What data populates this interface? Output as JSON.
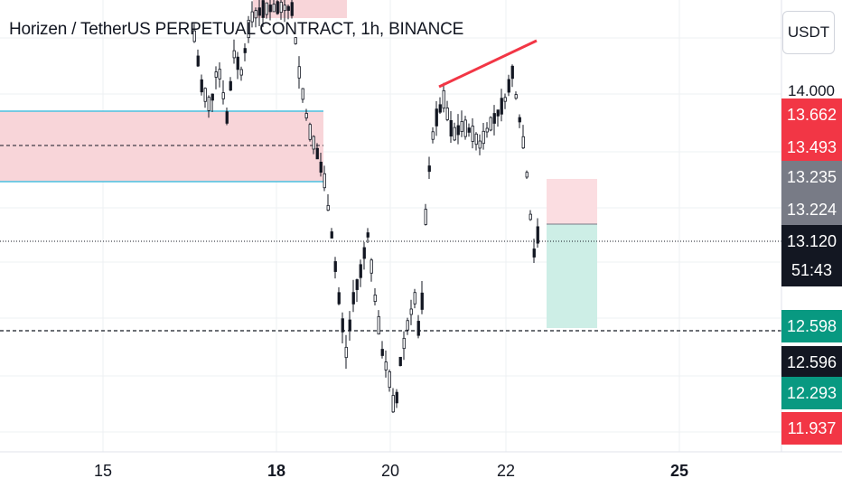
{
  "header": {
    "title": "Horizen / TetherUS PERPETUAL CONTRACT, 1h, BINANCE",
    "currency_button": "USDT"
  },
  "price_axis": {
    "tick_14000": "14.000",
    "labels": [
      {
        "value": "13.662",
        "color": "#f23645"
      },
      {
        "value": "13.493",
        "color": "#f23645"
      },
      {
        "value": "13.235",
        "color": "#787b86"
      },
      {
        "value": "13.224",
        "color": "#787b86"
      },
      {
        "value": "13.120",
        "color": "#131722"
      },
      {
        "value": "51:43",
        "color": "#131722"
      },
      {
        "value": "12.598",
        "color": "#089981"
      },
      {
        "value": "12.596",
        "color": "#131722"
      },
      {
        "value": "12.293",
        "color": "#089981"
      },
      {
        "value": "11.937",
        "color": "#f23645"
      }
    ]
  },
  "time_axis": {
    "labels": [
      {
        "text": "15",
        "bold": false
      },
      {
        "text": "18",
        "bold": true
      },
      {
        "text": "20",
        "bold": false
      },
      {
        "text": "22",
        "bold": false
      },
      {
        "text": "25",
        "bold": true
      }
    ]
  },
  "colors": {
    "zone_fill": "#f8d5d9",
    "zone_border": "#4ac1e0",
    "trendline": "#f23645",
    "stop_zone": "#fbdde1",
    "target_zone": "#cdeee6",
    "candle": "#131722"
  }
}
